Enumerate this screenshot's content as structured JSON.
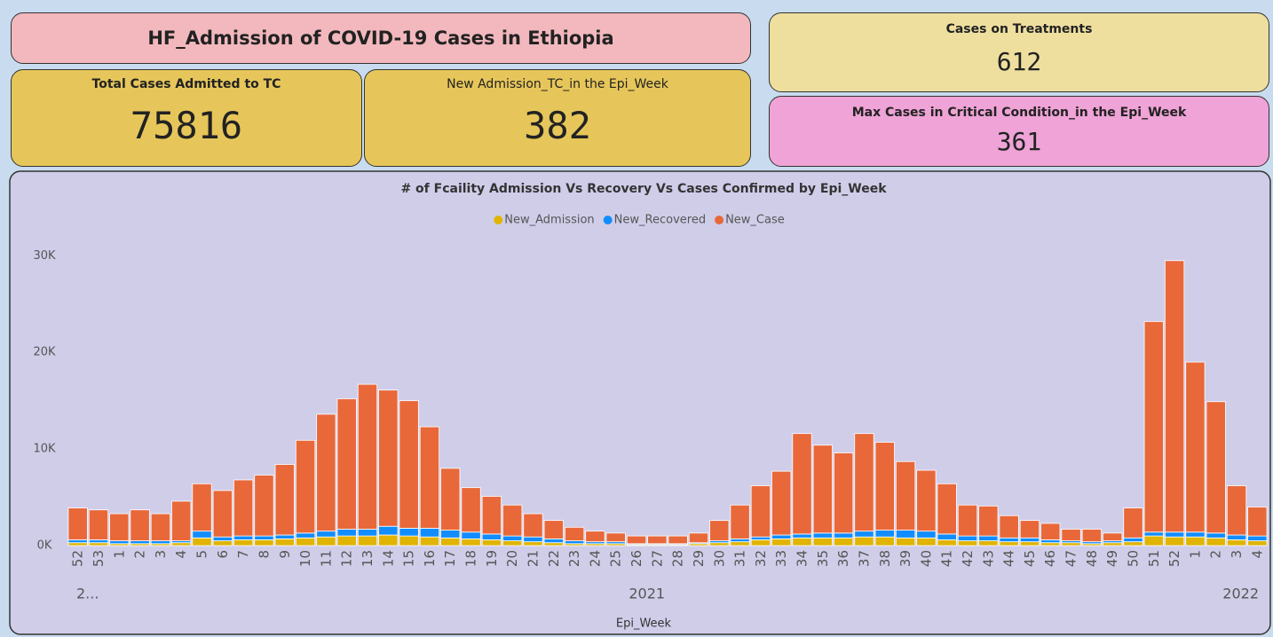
{
  "header": {
    "title": "HF_Admission of COVID-19 Cases in Ethiopia"
  },
  "cards": [
    {
      "label": "Total Cases Admitted to TC",
      "value": 75816
    },
    {
      "label": "New Admission_TC_in the Epi_Week",
      "value": 382
    },
    {
      "label": "Cases on Treatments",
      "value": 612
    },
    {
      "label": "Max Cases in Critical Condition_in the Epi_Week",
      "value": 361
    }
  ],
  "chart_data": {
    "type": "stacked_bar",
    "title": "# of Fcaility Admission Vs Recovery Vs Cases Confirmed by Epi_Week",
    "x_label": "Epi_Week",
    "categories": [
      "52",
      "53",
      "1",
      "2",
      "3",
      "4",
      "5",
      "6",
      "7",
      "8",
      "9",
      "10",
      "11",
      "12",
      "13",
      "14",
      "15",
      "16",
      "17",
      "18",
      "19",
      "20",
      "21",
      "22",
      "23",
      "24",
      "25",
      "26",
      "27",
      "28",
      "29",
      "30",
      "31",
      "32",
      "33",
      "34",
      "35",
      "36",
      "37",
      "38",
      "39",
      "40",
      "41",
      "42",
      "43",
      "44",
      "45",
      "46",
      "47",
      "48",
      "49",
      "50",
      "51",
      "52",
      "1",
      "2",
      "3",
      "4"
    ],
    "x_groups": [
      {
        "label": "2...",
        "span": 2
      },
      {
        "label": "2021",
        "span": 52
      },
      {
        "label": "2022",
        "span": 4
      }
    ],
    "series": [
      {
        "name": "New_Admission",
        "color": "#e0b400",
        "values": [
          300,
          300,
          200,
          200,
          200,
          300,
          800,
          500,
          600,
          600,
          700,
          800,
          900,
          1000,
          1000,
          1100,
          1000,
          900,
          800,
          700,
          600,
          500,
          400,
          300,
          200,
          200,
          200,
          100,
          100,
          100,
          200,
          300,
          400,
          600,
          700,
          800,
          800,
          800,
          900,
          900,
          800,
          800,
          600,
          500,
          500,
          400,
          400,
          300,
          300,
          200,
          300,
          400,
          1000,
          900,
          900,
          800,
          600,
          500
        ]
      },
      {
        "name": "New_Recovered",
        "color": "#118dff",
        "values": [
          300,
          300,
          300,
          300,
          300,
          200,
          700,
          400,
          400,
          400,
          400,
          500,
          600,
          700,
          700,
          900,
          800,
          900,
          800,
          700,
          600,
          500,
          500,
          400,
          300,
          200,
          200,
          100,
          100,
          100,
          100,
          200,
          300,
          300,
          400,
          400,
          500,
          500,
          600,
          700,
          800,
          700,
          600,
          500,
          500,
          400,
          400,
          300,
          200,
          200,
          200,
          400,
          400,
          500,
          500,
          500,
          500,
          500
        ]
      },
      {
        "name": "New_Case",
        "color": "#e8683a",
        "values": [
          3300,
          3100,
          2800,
          3200,
          2800,
          4100,
          4900,
          4800,
          5800,
          6300,
          7300,
          9600,
          12100,
          13500,
          15000,
          14100,
          13200,
          10500,
          6400,
          4600,
          3900,
          3200,
          2400,
          1900,
          1400,
          1100,
          900,
          800,
          800,
          800,
          1000,
          2100,
          3500,
          5300,
          6600,
          10400,
          9100,
          8300,
          10100,
          9100,
          7100,
          6300,
          5200,
          3200,
          3100,
          2300,
          1800,
          1700,
          1200,
          1300,
          800,
          3100,
          21800,
          28100,
          17600,
          13600,
          5100,
          3000
        ]
      }
    ],
    "ylim": [
      0,
      31500
    ],
    "yticks": [
      {
        "value": 0,
        "label": "0K"
      },
      {
        "value": 10000,
        "label": "10K"
      },
      {
        "value": 20000,
        "label": "20K"
      },
      {
        "value": 30000,
        "label": "30K"
      }
    ],
    "legend": "top"
  }
}
